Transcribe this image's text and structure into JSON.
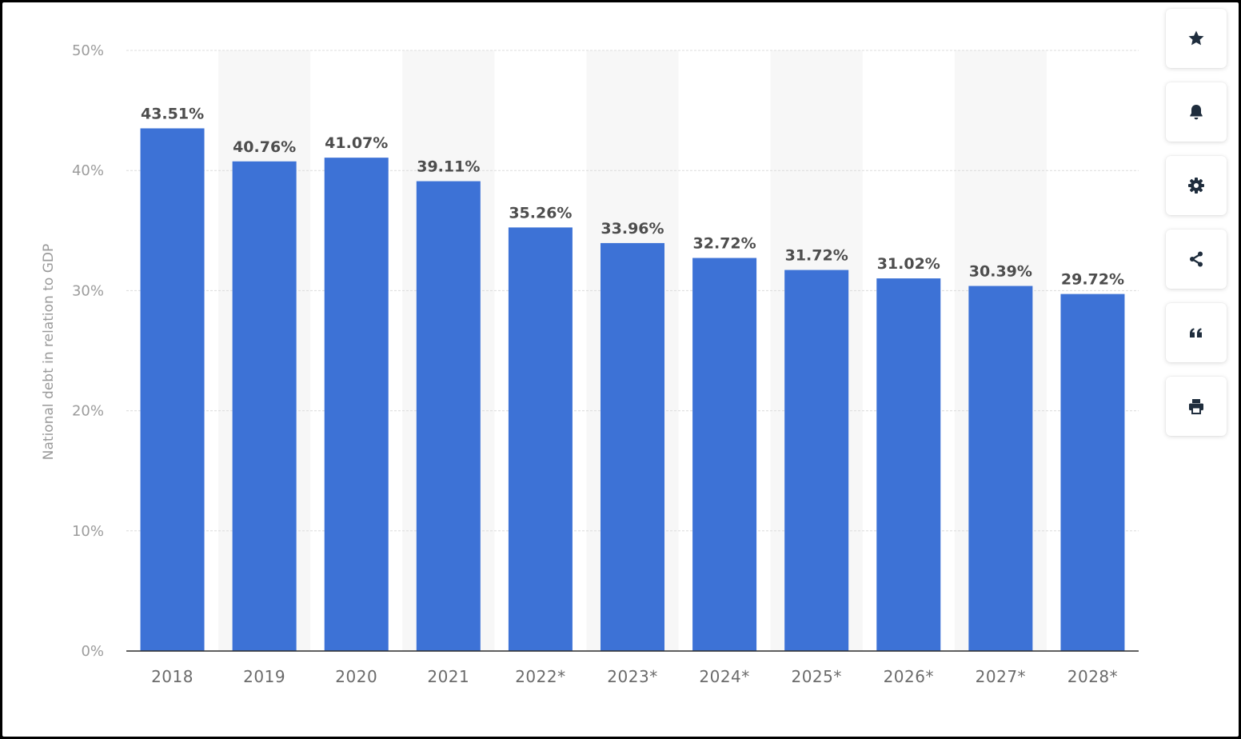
{
  "chart_data": {
    "type": "bar",
    "categories": [
      "2018",
      "2019",
      "2020",
      "2021",
      "2022*",
      "2023*",
      "2024*",
      "2025*",
      "2026*",
      "2027*",
      "2028*"
    ],
    "values": [
      43.51,
      40.76,
      41.07,
      39.11,
      35.26,
      33.96,
      32.72,
      31.72,
      31.02,
      30.39,
      29.72
    ],
    "value_labels": [
      "43.51%",
      "40.76%",
      "41.07%",
      "39.11%",
      "35.26%",
      "33.96%",
      "32.72%",
      "31.72%",
      "31.02%",
      "30.39%",
      "29.72%"
    ],
    "ylabel": "National debt in relation to GDP",
    "yticks": [
      0,
      10,
      20,
      30,
      40,
      50
    ],
    "ytick_labels": [
      "0%",
      "10%",
      "20%",
      "30%",
      "40%",
      "50%"
    ],
    "ylim": [
      0,
      50
    ],
    "grid": true,
    "bar_color": "#3d72d6"
  },
  "toolbar": {
    "buttons": [
      {
        "icon": "star-icon",
        "name": "favorite-button"
      },
      {
        "icon": "bell-icon",
        "name": "notification-button"
      },
      {
        "icon": "gear-icon",
        "name": "settings-button"
      },
      {
        "icon": "share-icon",
        "name": "share-button"
      },
      {
        "icon": "quote-icon",
        "name": "cite-button"
      },
      {
        "icon": "printer-icon",
        "name": "print-button"
      }
    ]
  }
}
